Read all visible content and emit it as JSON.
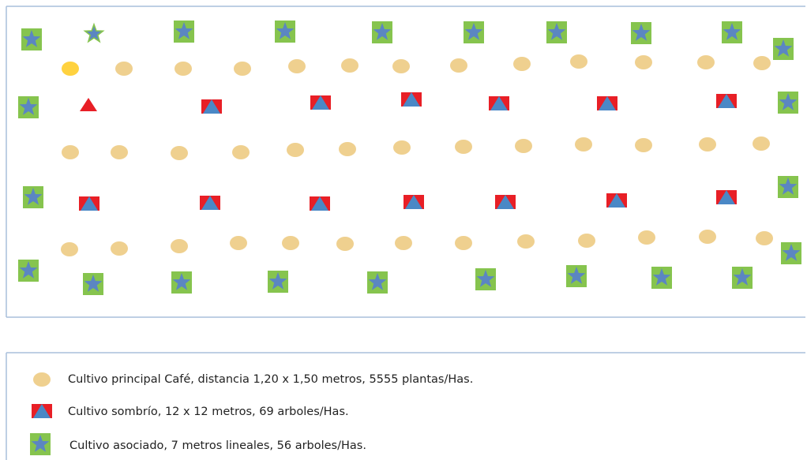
{
  "colors": {
    "coffee": "#efd08f",
    "coffee_highlight": "#ffd23f",
    "shade_square": "#e81f26",
    "shade_triangle": "#4a88c6",
    "assoc_square": "#86c44e",
    "assoc_star": "#5b86c2",
    "border": "#a9bfdc"
  },
  "icons": {
    "coffee": "ellipse-icon",
    "shade": "red-square-blue-triangle-icon",
    "associated": "green-square-blue-star-icon"
  },
  "plot": {
    "rows": [
      {
        "kind": "associated",
        "count": 10
      },
      {
        "kind": "coffee",
        "count": 13
      },
      {
        "kind": "shade",
        "count": 9
      },
      {
        "kind": "coffee",
        "count": 13
      },
      {
        "kind": "shade",
        "count": 9
      },
      {
        "kind": "coffee",
        "count": 13
      },
      {
        "kind": "associated",
        "count": 11
      }
    ]
  },
  "legend": {
    "items": [
      {
        "key": "coffee",
        "label": "Cultivo principal Café, distancia 1,20 x 1,50 metros, 5555 plantas/Has."
      },
      {
        "key": "shade",
        "label": "Cultivo sombrío, 12 x 12 metros, 69 arboles/Has."
      },
      {
        "key": "associated",
        "label": "Cultivo asociado, 7 metros lineales, 56 arboles/Has."
      }
    ]
  }
}
